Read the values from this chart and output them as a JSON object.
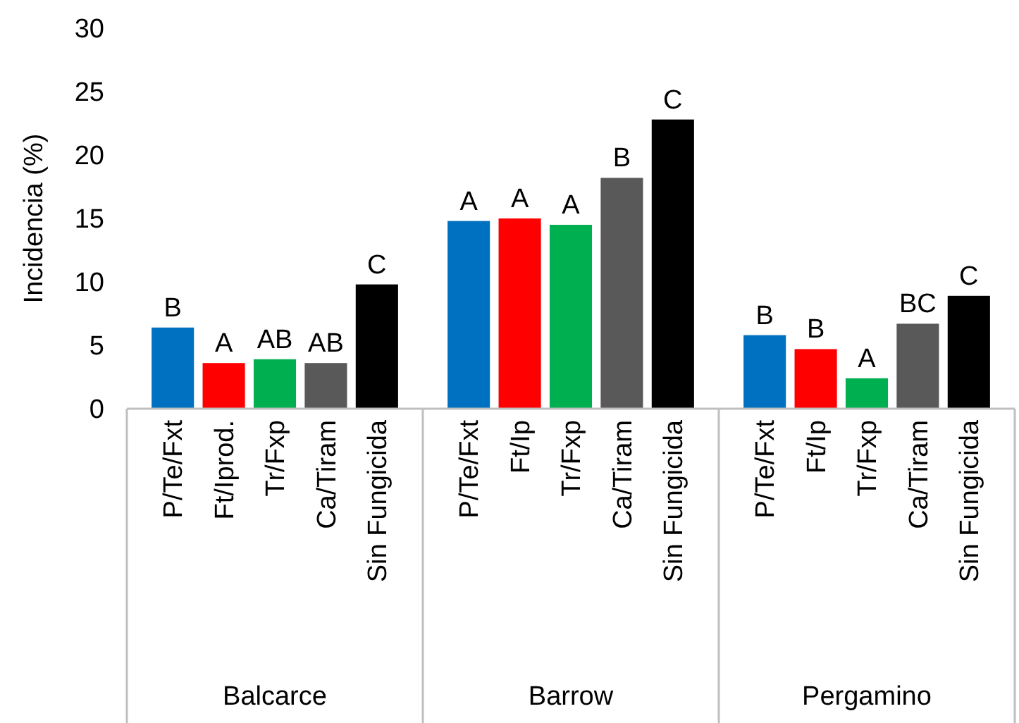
{
  "chart_data": {
    "type": "bar",
    "ylabel": "Incidencia (%)",
    "categories": [
      "P/Te/Fxt",
      "Ft/Iprod.",
      "Tr/Fxp",
      "Ca/Tiram",
      "Sin Fungicida",
      "P/Te/Fxt",
      "Ft/Ip",
      "Tr/Fxp",
      "Ca/Tiram",
      "Sin Fungicida",
      "P/Te/Fxt",
      "Ft/Ip",
      "Tr/Fxp",
      "Ca/Tiram",
      "Sin Fungicida"
    ],
    "annotations": [
      "Balcarce",
      "Barrow",
      "Pergamino"
    ],
    "series": [
      {
        "values": [
          6.4,
          3.6,
          3.9,
          3.6,
          9.8,
          14.8,
          15.0,
          14.5,
          18.2,
          22.8,
          5.8,
          4.7,
          2.4,
          6.7,
          8.9
        ],
        "colors": [
          "#0070c0",
          "#ff0000",
          "#00b050",
          "#595959",
          "#000000",
          "#0070c0",
          "#ff0000",
          "#00b050",
          "#595959",
          "#000000",
          "#0070c0",
          "#ff0000",
          "#00b050",
          "#595959",
          "#000000"
        ],
        "value_labels": [
          "B",
          "A",
          "AB",
          "AB",
          "C",
          "A",
          "A",
          "A",
          "B",
          "C",
          "B",
          "B",
          "A",
          "BC",
          "C"
        ]
      }
    ],
    "ylim": [
      0,
      30
    ],
    "yticks": [
      0,
      5,
      10,
      15,
      20,
      25,
      30
    ],
    "grid": false
  }
}
